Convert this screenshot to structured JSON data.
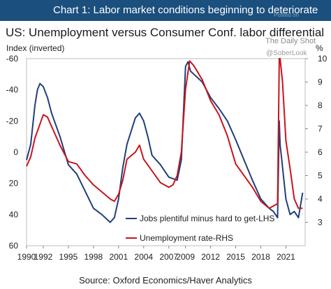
{
  "header": {
    "title": "Chart 1: Labor market conditions beginning to deteriorate",
    "watermark_posted": "Posted on",
    "watermark_site": "The Daily Shot",
    "watermark_handle": "@SoberLook"
  },
  "footer": {
    "source": "Source: Oxford Economics/Haver Analytics"
  },
  "colors": {
    "header_bg": "#1b4f7d",
    "jobs": "#1f3f7a",
    "unemployment": "#c8141e"
  },
  "chart_data": {
    "type": "line",
    "title": "US: Unemployment versus Consumer Conf. labor differential",
    "ylabel": "Index (inverted)",
    "y2label": "%",
    "xlim": [
      1990,
      2023.3
    ],
    "ylim": [
      -60,
      60
    ],
    "y_inverted": true,
    "y2lim": [
      2,
      10
    ],
    "x_ticks": [
      1990,
      1992,
      1995,
      1998,
      2001,
      2004,
      2007,
      2009,
      2012,
      2015,
      2018,
      2021
    ],
    "x_tick_labels": [
      "1990",
      "1992",
      "1995",
      "1998",
      "2001",
      "2004",
      "2007",
      "2009",
      "2012",
      "2015",
      "2018",
      "2021"
    ],
    "y_ticks": [
      -60,
      -40,
      -20,
      0,
      20,
      40,
      60
    ],
    "y_tick_labels": [
      "-60",
      "-40",
      "-20",
      "0",
      "20",
      "40",
      "60"
    ],
    "y2_ticks": [
      3,
      4,
      5,
      6,
      7,
      8,
      9,
      10
    ],
    "y2_tick_labels": [
      "3",
      "4",
      "5",
      "6",
      "7",
      "8",
      "9",
      "10"
    ],
    "legend_position": "bottom-right",
    "series": [
      {
        "name": "Jobs plentiful minus hard to get-LHS",
        "axis": "left",
        "x": [
          1990,
          1990.5,
          1991,
          1991.3,
          1991.6,
          1992,
          1992.5,
          1993,
          1994,
          1995,
          1996,
          1997,
          1998,
          1999,
          2000,
          2000.5,
          2001,
          2001.5,
          2002,
          2003,
          2003.5,
          2004,
          2004.5,
          2005,
          2006,
          2007,
          2008,
          2008.5,
          2009,
          2009.3,
          2009.6,
          2010,
          2011,
          2012,
          2013,
          2014,
          2015,
          2016,
          2017,
          2018,
          2019,
          2019.5,
          2020,
          2020.2,
          2020.3,
          2020.5,
          2021,
          2021.5,
          2022,
          2022.5,
          2023
        ],
        "y": [
          5,
          -5,
          -30,
          -40,
          -44,
          -42,
          -35,
          -25,
          -10,
          8,
          14,
          25,
          36,
          40,
          45,
          42,
          30,
          10,
          -5,
          -22,
          -25,
          -20,
          -10,
          2,
          8,
          16,
          18,
          5,
          -55,
          -58,
          -52,
          -50,
          -45,
          -35,
          -28,
          -20,
          -8,
          5,
          18,
          30,
          36,
          38,
          42,
          -20,
          -5,
          5,
          30,
          40,
          38,
          42,
          26
        ]
      },
      {
        "name": "Unemployment rate-RHS",
        "axis": "right",
        "x": [
          1990,
          1990.5,
          1991,
          1991.5,
          1992,
          1992.5,
          1993,
          1994,
          1995,
          1996,
          1997,
          1998,
          1999,
          2000,
          2000.5,
          2001,
          2001.5,
          2002,
          2003,
          2003.5,
          2004,
          2005,
          2006,
          2007,
          2007.5,
          2008,
          2008.5,
          2009,
          2009.5,
          2010,
          2011,
          2012,
          2013,
          2014,
          2015,
          2016,
          2017,
          2018,
          2019,
          2020,
          2020.2,
          2020.3,
          2020.6,
          2021,
          2021.5,
          2022,
          2022.5,
          2023
        ],
        "y": [
          5.4,
          5.8,
          6.6,
          7.1,
          7.6,
          7.5,
          7.1,
          6.3,
          5.6,
          5.5,
          5.0,
          4.6,
          4.3,
          4.0,
          3.9,
          4.2,
          4.8,
          5.7,
          6.0,
          6.3,
          5.7,
          5.2,
          4.7,
          4.5,
          4.6,
          5.0,
          6.0,
          8.7,
          9.9,
          9.7,
          9.1,
          8.2,
          7.6,
          6.7,
          5.5,
          5.0,
          4.5,
          3.9,
          3.6,
          3.8,
          12.0,
          13.3,
          9.0,
          6.5,
          5.3,
          4.0,
          3.6,
          3.6
        ]
      }
    ]
  }
}
